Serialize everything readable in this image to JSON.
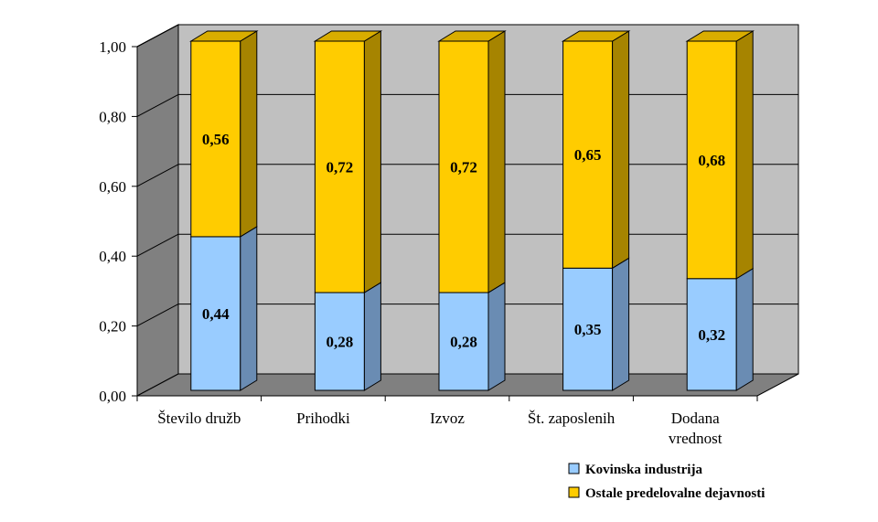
{
  "chart_data": {
    "type": "bar",
    "stacked": true,
    "three_d": true,
    "categories": [
      [
        "Število družb"
      ],
      [
        "Prihodki"
      ],
      [
        "Izvoz"
      ],
      [
        "Št. zaposlenih"
      ],
      [
        "Dodana",
        "vrednost"
      ]
    ],
    "series": [
      {
        "name": "Kovinska industrija",
        "values": [
          0.44,
          0.28,
          0.28,
          0.35,
          0.32
        ],
        "labels": [
          "0,44",
          "0,28",
          "0,28",
          "0,35",
          "0,32"
        ],
        "color": "#99CCFF",
        "side_color": "#6A8CB3",
        "top_color": "#7FAFE0"
      },
      {
        "name": "Ostale predelovalne dejavnosti",
        "values": [
          0.56,
          0.72,
          0.72,
          0.65,
          0.68
        ],
        "labels": [
          "0,56",
          "0,72",
          "0,72",
          "0,65",
          "0,68"
        ],
        "color": "#FFCC00",
        "side_color": "#A68400",
        "top_color": "#D9AD00"
      }
    ],
    "y_ticks": [
      "0,00",
      "0,20",
      "0,40",
      "0,60",
      "0,80",
      "1,00"
    ],
    "ylim": [
      0,
      1
    ],
    "grid": true,
    "legend": "bottom-right",
    "wall_color": "#C0C0C0",
    "floor_color": "#808080",
    "side_wall_color": "#808080"
  }
}
